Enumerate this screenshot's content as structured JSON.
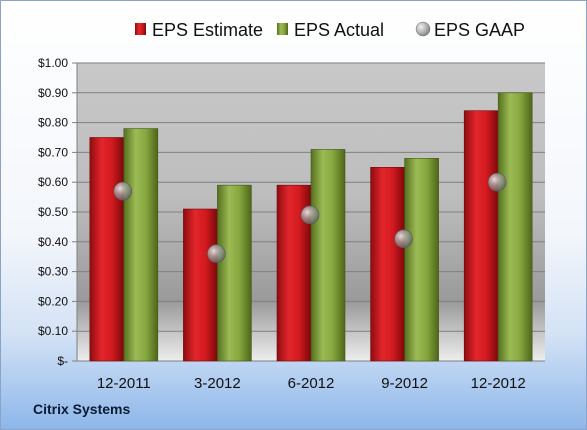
{
  "footer": {
    "company": "Citrix Systems"
  },
  "colors": {
    "estimate": "#c8161b",
    "actual": "#7d9a3a",
    "gaap": "#9aa0a6"
  },
  "chart_data": {
    "type": "bar",
    "title": "",
    "xlabel": "",
    "ylabel": "",
    "categories": [
      "12-2011",
      "3-2012",
      "6-2012",
      "9-2012",
      "12-2012"
    ],
    "y_tick_labels": [
      "$-",
      "$0.10",
      "$0.20",
      "$0.30",
      "$0.40",
      "$0.50",
      "$0.60",
      "$0.70",
      "$0.80",
      "$0.90",
      "$1.00"
    ],
    "ylim": [
      0,
      1.0
    ],
    "grid": true,
    "legend_position": "top",
    "series": [
      {
        "name": "EPS Estimate",
        "kind": "bar",
        "values": [
          0.75,
          0.51,
          0.59,
          0.65,
          0.84
        ]
      },
      {
        "name": "EPS Actual",
        "kind": "bar",
        "values": [
          0.78,
          0.59,
          0.71,
          0.68,
          0.9
        ]
      },
      {
        "name": "EPS GAAP",
        "kind": "marker",
        "values": [
          0.57,
          0.36,
          0.49,
          0.41,
          0.6
        ]
      }
    ]
  }
}
